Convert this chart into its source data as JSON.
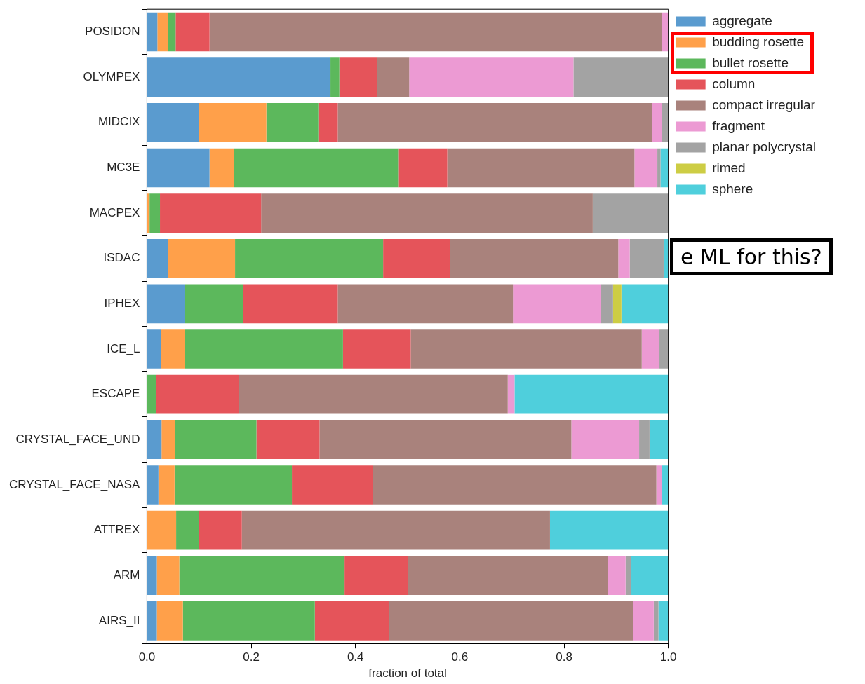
{
  "chart_data": {
    "type": "bar",
    "orientation": "horizontal",
    "stacked": true,
    "xlabel": "fraction of total",
    "categories": [
      "POSIDON",
      "OLYMPEX",
      "MIDCIX",
      "MC3E",
      "MACPEX",
      "ISDAC",
      "IPHEX",
      "ICE_L",
      "ESCAPE",
      "CRYSTAL_FACE_UND",
      "CRYSTAL_FACE_NASA",
      "ATTREX",
      "ARM",
      "AIRS_II"
    ],
    "series": [
      {
        "name": "aggregate",
        "color": "#5a9bcf",
        "values": [
          0.02,
          0.352,
          0.099,
          0.12,
          0,
          0.04,
          0.073,
          0.027,
          0,
          0.028,
          0.022,
          0,
          0.019,
          0.019
        ]
      },
      {
        "name": "budding rosette",
        "color": "#ffa04a",
        "values": [
          0.02,
          0,
          0.13,
          0.047,
          0.005,
          0.129,
          0,
          0.046,
          0,
          0.026,
          0.031,
          0.056,
          0.043,
          0.05
        ]
      },
      {
        "name": "bullet rosette",
        "color": "#5cb85c",
        "values": [
          0.015,
          0.017,
          0.101,
          0.316,
          0.02,
          0.284,
          0.112,
          0.303,
          0.017,
          0.156,
          0.225,
          0.044,
          0.317,
          0.253
        ]
      },
      {
        "name": "column",
        "color": "#e5545a",
        "values": [
          0.065,
          0.072,
          0.036,
          0.093,
          0.194,
          0.129,
          0.181,
          0.13,
          0.16,
          0.121,
          0.155,
          0.082,
          0.121,
          0.142
        ]
      },
      {
        "name": "compact irregular",
        "color": "#a9827c",
        "values": [
          0.868,
          0.062,
          0.603,
          0.359,
          0.636,
          0.322,
          0.336,
          0.443,
          0.515,
          0.483,
          0.544,
          0.591,
          0.384,
          0.469
        ]
      },
      {
        "name": "fragment",
        "color": "#ec9ad3",
        "values": [
          0.012,
          0.315,
          0.019,
          0.044,
          0,
          0.022,
          0.169,
          0.034,
          0.013,
          0.13,
          0.011,
          0,
          0.034,
          0.039
        ]
      },
      {
        "name": "planar polycrystal",
        "color": "#a3a3a3",
        "values": [
          0,
          0.182,
          0.012,
          0.006,
          0.145,
          0.065,
          0.023,
          0.017,
          0,
          0.02,
          0,
          0,
          0.01,
          0.009
        ]
      },
      {
        "name": "rimed",
        "color": "#cdcd44",
        "values": [
          0,
          0,
          0,
          0,
          0,
          0,
          0.016,
          0,
          0,
          0,
          0,
          0,
          0,
          0
        ]
      },
      {
        "name": "sphere",
        "color": "#4fcfdc",
        "values": [
          0,
          0,
          0,
          0.015,
          0,
          0.009,
          0.09,
          0,
          0.295,
          0.036,
          0.012,
          0.227,
          0.072,
          0.019
        ]
      }
    ],
    "xlim": [
      0,
      1
    ],
    "xticks": [
      {
        "value": 0,
        "label": "0.0"
      },
      {
        "value": 0.2,
        "label": "0.2"
      },
      {
        "value": 0.4,
        "label": "0.4"
      },
      {
        "value": 0.6,
        "label": "0.6"
      },
      {
        "value": 0.8,
        "label": "0.8"
      },
      {
        "value": 1,
        "label": "1.0"
      }
    ],
    "legend": "top right",
    "annotations": [
      "e ML for this?"
    ]
  }
}
